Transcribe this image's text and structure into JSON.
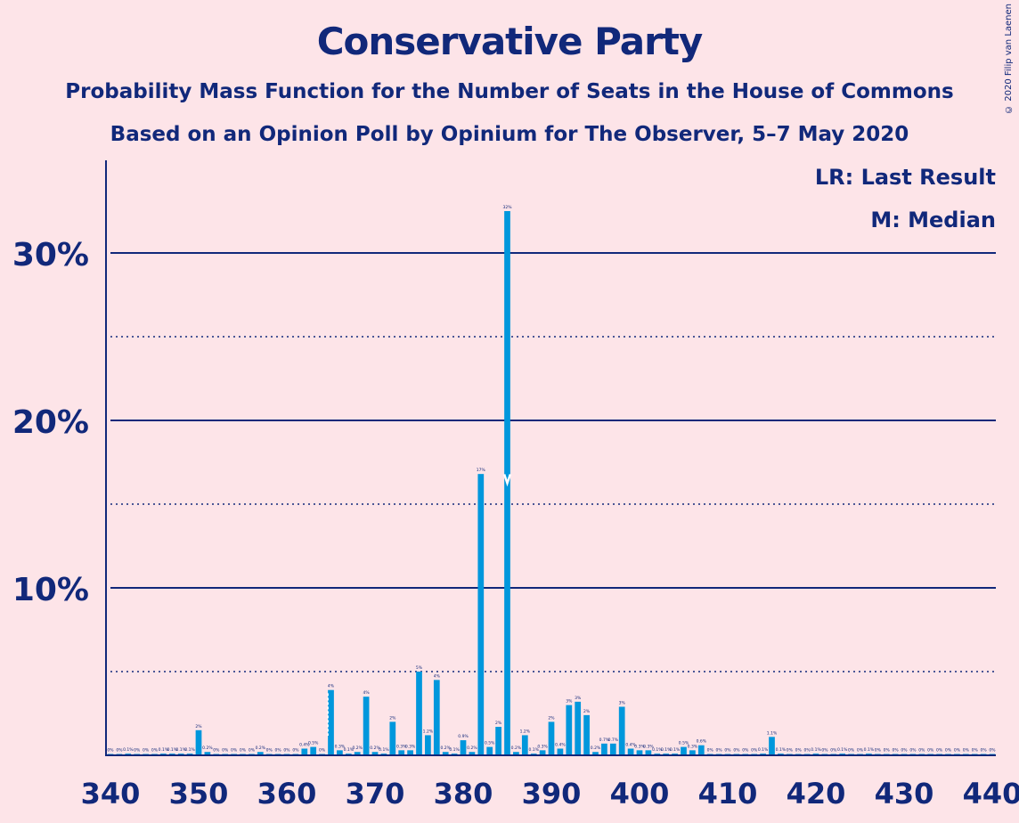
{
  "copyright": "© 2020 Filip van Laenen",
  "legend": {
    "last_result": "LR: Last Result",
    "median": "M: Median"
  },
  "colors": {
    "background": "#fde4e8",
    "bar": "#0097dc",
    "axis": "#11287a",
    "text": "#11287a"
  },
  "chart_data": {
    "type": "bar",
    "title": "Conservative Party",
    "subtitle": "Probability Mass Function for the Number of Seats in the House of Commons",
    "subtitle2": "Based on an Opinion Poll by Opinium for The Observer, 5–7 May 2020",
    "xlim": [
      340,
      440
    ],
    "ylim": [
      0,
      35
    ],
    "x_ticks": [
      340,
      350,
      360,
      370,
      380,
      390,
      400,
      410,
      420,
      430,
      440
    ],
    "y_ticks_major": [
      10,
      20,
      30
    ],
    "y_ticks_major_labels": [
      "10%",
      "20%",
      "30%"
    ],
    "y_ticks_minor": [
      5,
      15,
      25
    ],
    "last_result_seat": 365,
    "median_seat": 385,
    "x": [
      340,
      341,
      342,
      343,
      344,
      345,
      346,
      347,
      348,
      349,
      350,
      351,
      352,
      353,
      354,
      355,
      356,
      357,
      358,
      359,
      360,
      361,
      362,
      363,
      364,
      365,
      366,
      367,
      368,
      369,
      370,
      371,
      372,
      373,
      374,
      375,
      376,
      377,
      378,
      379,
      380,
      381,
      382,
      383,
      384,
      385,
      386,
      387,
      388,
      389,
      390,
      391,
      392,
      393,
      394,
      395,
      396,
      397,
      398,
      399,
      400,
      401,
      402,
      403,
      404,
      405,
      406,
      407,
      408,
      409,
      410,
      411,
      412,
      413,
      414,
      415,
      416,
      417,
      418,
      419,
      420,
      421,
      422,
      423,
      424,
      425,
      426,
      427,
      428,
      429,
      430,
      431,
      432,
      433,
      434,
      435,
      436,
      437,
      438,
      439,
      440
    ],
    "values": [
      0,
      0,
      0.1,
      0,
      0,
      0,
      0.1,
      0.1,
      0.1,
      0.1,
      1.5,
      0.2,
      0,
      0,
      0,
      0,
      0,
      0.2,
      0,
      0,
      0,
      0,
      0.4,
      0.5,
      0,
      3.9,
      0.3,
      0.1,
      0.2,
      3.5,
      0.2,
      0.1,
      2,
      0.3,
      0.3,
      5,
      1.2,
      4.5,
      0.2,
      0.1,
      0.9,
      0.2,
      16.8,
      0.5,
      1.7,
      32.5,
      0.2,
      1.2,
      0.1,
      0.3,
      2,
      0.4,
      3,
      3.2,
      2.4,
      0.2,
      0.7,
      0.7,
      2.9,
      0.4,
      0.3,
      0.3,
      0.1,
      0.1,
      0.1,
      0.5,
      0.3,
      0.6,
      0,
      0,
      0,
      0,
      0,
      0,
      0.1,
      1.1,
      0.1,
      0,
      0,
      0,
      0.1,
      0,
      0,
      0.1,
      0,
      0,
      0.1,
      0,
      0,
      0,
      0,
      0,
      0,
      0,
      0,
      0,
      0,
      0,
      0,
      0,
      0
    ],
    "labels": [
      "0%",
      "0%",
      "0.1%",
      "0%",
      "0%",
      "0%",
      "0.1%",
      "0.1%",
      "0.1%",
      "0.1%",
      "2%",
      "0.2%",
      "0%",
      "0%",
      "0%",
      "0%",
      "0%",
      "0.2%",
      "0%",
      "0%",
      "0%",
      "0%",
      "0.4%",
      "0.5%",
      "0%",
      "4%",
      "0.3%",
      "0.1%",
      "0.2%",
      "4%",
      "0.2%",
      "0.1%",
      "2%",
      "0.3%",
      "0.3%",
      "5%",
      "1.2%",
      "4%",
      "0.2%",
      "0.1%",
      "0.9%",
      "0.2%",
      "17%",
      "0.5%",
      "2%",
      "32%",
      "0.2%",
      "1.2%",
      "0.1%",
      "0.3%",
      "2%",
      "0.4%",
      "3%",
      "3%",
      "2%",
      "0.2%",
      "0.7%",
      "0.7%",
      "3%",
      "0.4%",
      "0.3%",
      "0.3%",
      "0.1%",
      "0.1%",
      "0.1%",
      "0.5%",
      "0.3%",
      "0.6%",
      "0%",
      "0%",
      "0%",
      "0%",
      "0%",
      "0%",
      "0.1%",
      "1.1%",
      "0.1%",
      "0%",
      "0%",
      "0%",
      "0.1%",
      "0%",
      "0%",
      "0.1%",
      "0%",
      "0%",
      "0.1%",
      "0%",
      "0%",
      "0%",
      "0%",
      "0%",
      "0%",
      "0%",
      "0%",
      "0%",
      "0%",
      "0%",
      "0%",
      "0%",
      "0%"
    ]
  }
}
